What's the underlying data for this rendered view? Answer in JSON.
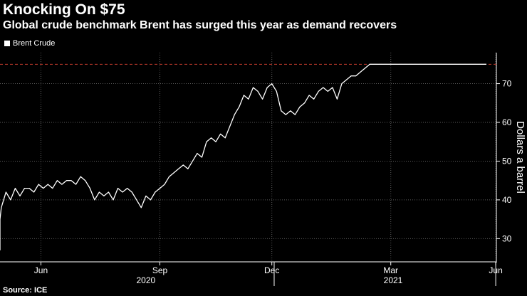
{
  "title": "Knocking On $75",
  "subtitle": "Global crude benchmark Brent has surged this year as demand recovers",
  "source": "Source: ICE",
  "chart_data": {
    "type": "line",
    "title": "Knocking On $75",
    "xlabel": "",
    "ylabel": "Dollars a barrel",
    "ylim": [
      24,
      78
    ],
    "yticks": [
      30,
      40,
      50,
      60,
      70
    ],
    "reference_line": {
      "value": 75,
      "color": "#c0392b",
      "style": "dashed"
    },
    "xticks": [
      {
        "label": "Jun",
        "t": 0.045
      },
      {
        "label": "Sep",
        "t": 0.3
      },
      {
        "label": "Dec",
        "t": 0.54
      },
      {
        "label": "Mar",
        "t": 0.795
      },
      {
        "label": "Jun",
        "t": 1.02
      }
    ],
    "year_labels": [
      {
        "label": "2020",
        "t": 0.27
      },
      {
        "label": "2021",
        "t": 0.8
      }
    ],
    "year_dividers": [
      0.545,
      1.02
    ],
    "series": [
      {
        "name": "Brent Crude",
        "color": "#ffffff",
        "x": [
          -0.1,
          -0.09,
          -0.08,
          -0.07,
          -0.06,
          -0.05,
          -0.04,
          -0.03,
          -0.02,
          -0.01,
          0.0,
          0.01,
          0.02,
          0.03,
          0.04,
          0.05,
          0.06,
          0.07,
          0.08,
          0.09,
          0.1,
          0.11,
          0.12,
          0.13,
          0.14,
          0.15,
          0.16,
          0.17,
          0.18,
          0.19,
          0.2,
          0.21,
          0.22,
          0.23,
          0.24,
          0.25,
          0.26,
          0.27,
          0.28,
          0.29,
          0.3,
          0.31,
          0.32,
          0.33,
          0.34,
          0.35,
          0.36,
          0.37,
          0.38,
          0.39,
          0.4,
          0.41,
          0.42,
          0.43,
          0.44,
          0.45,
          0.46,
          0.47,
          0.48,
          0.49,
          0.5,
          0.51,
          0.52,
          0.53,
          0.54,
          0.55,
          0.56,
          0.57,
          0.58,
          0.59,
          0.6,
          0.61,
          0.62,
          0.63,
          0.64,
          0.65,
          0.66,
          0.67,
          0.68,
          0.69,
          0.7,
          0.71,
          0.72,
          0.73,
          0.74,
          0.75,
          0.76,
          0.77,
          0.78,
          0.79,
          0.8,
          0.81,
          0.82,
          0.83,
          0.84,
          0.85,
          0.86,
          0.87,
          0.88,
          0.89,
          0.9,
          0.91,
          0.92,
          0.93,
          0.94,
          0.95,
          0.96,
          0.97,
          0.98,
          0.99,
          1.0,
          1.01
        ],
        "values": [
          27,
          31,
          29,
          33,
          36,
          35,
          38,
          42,
          40,
          43,
          41,
          43,
          43,
          42,
          44,
          43,
          44,
          43,
          45,
          44,
          45,
          45,
          44,
          46,
          45,
          43,
          40,
          42,
          41,
          42,
          40,
          43,
          42,
          43,
          42,
          40,
          38,
          41,
          40,
          42,
          43,
          44,
          46,
          47,
          48,
          49,
          48,
          50,
          52,
          51,
          55,
          56,
          55,
          57,
          56,
          59,
          62,
          64,
          67,
          66,
          69,
          68,
          66,
          69,
          70,
          68,
          63,
          62,
          63,
          62,
          64,
          65,
          67,
          66,
          68,
          69,
          68,
          69,
          66,
          70,
          71,
          72,
          72,
          73,
          74,
          75,
          75,
          75,
          75,
          75,
          75,
          75,
          75,
          75,
          75,
          75,
          75,
          75,
          75,
          75,
          75,
          75,
          75,
          75,
          75,
          75,
          75,
          75,
          75,
          75,
          75,
          75
        ]
      }
    ]
  }
}
